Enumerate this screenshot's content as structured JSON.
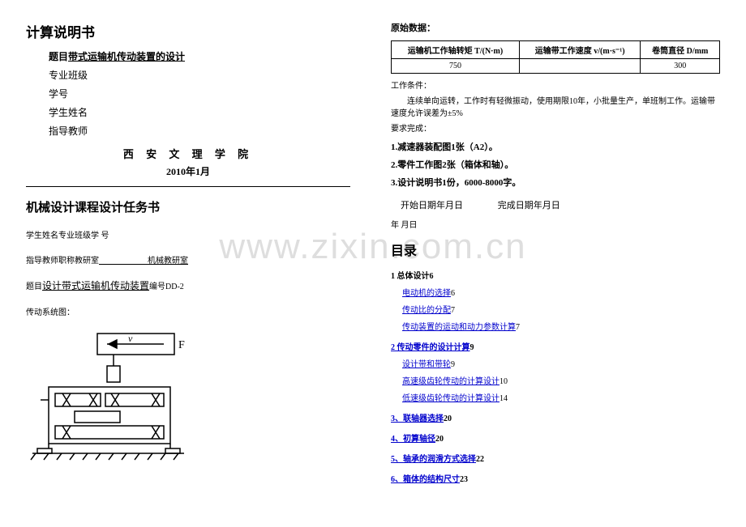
{
  "watermark": "www.zixin.com.cn",
  "left": {
    "title": "计算说明书",
    "topic_label": "题目",
    "topic_value": "带式运输机传动装置的设计",
    "lines": [
      "专业班级",
      "学号",
      "学生姓名",
      "指导教师"
    ],
    "school": "西 安 文 理 学 院",
    "date": "2010年1月",
    "task_title": "机械设计课程设计任务书",
    "student_line": "学生姓名专业班级学    号",
    "advisor_prefix": "指导教师职称教研室",
    "advisor_val": "机械教研室",
    "topic2_label": "题目",
    "topic2_val": "设计带式运输机传动装置",
    "topic2_suffix": "编号DD-2",
    "diagram_label": "传动系统图："
  },
  "right": {
    "raw_label": "原始数据：",
    "table": {
      "headers": [
        "运输机工作轴转矩 T/(N·m)",
        "运输带工作速度 v/(m·s⁻¹)",
        "卷筒直径 D/mm"
      ],
      "row": [
        "750",
        "",
        "300"
      ]
    },
    "cond_label": "工作条件：",
    "cond_text": "连续单向运转，工作时有轻微振动，使用期限10年，小批量生产，单班制工作。运输带速度允许误差为±5%",
    "req_label": "要求完成：",
    "reqs": [
      "1.减速器装配图1张（A2）。",
      "2.零件工作图2张（箱体和轴）。",
      "3.设计说明书1份，6000-8000字。"
    ],
    "date_start": "开始日期年月日",
    "date_end": "完成日期年月日",
    "date_sig": "年       月日",
    "toc_title": "目录",
    "toc": [
      {
        "type": "sec_plain",
        "text": "1 总体设计6"
      },
      {
        "type": "item",
        "text": "电动机的选择",
        "page": "6"
      },
      {
        "type": "item",
        "text": "传动比的分配",
        "page": "7"
      },
      {
        "type": "item",
        "text": "传动装置的运动和动力参数计算",
        "page": "7"
      },
      {
        "type": "sec_link",
        "text": "2 传动零件的设计计算",
        "page": "9"
      },
      {
        "type": "item",
        "text": "设计带和带轮",
        "page": "9"
      },
      {
        "type": "item",
        "text": "高速级齿轮传动的计算设计",
        "page": "10"
      },
      {
        "type": "item",
        "text": "低速级齿轮传动的计算设计",
        "page": "14"
      },
      {
        "type": "sec_link",
        "text": "3、联轴器选择",
        "page": "20"
      },
      {
        "type": "sec_link",
        "text": "4、初算轴径",
        "page": "20"
      },
      {
        "type": "sec_link",
        "text": "5、轴承的润滑方式选择",
        "page": "22"
      },
      {
        "type": "sec_link",
        "text": "6、箱体的结构尺寸",
        "page": "23"
      }
    ]
  },
  "colors": {
    "link": "#0000cc",
    "wm": "#dedede"
  }
}
